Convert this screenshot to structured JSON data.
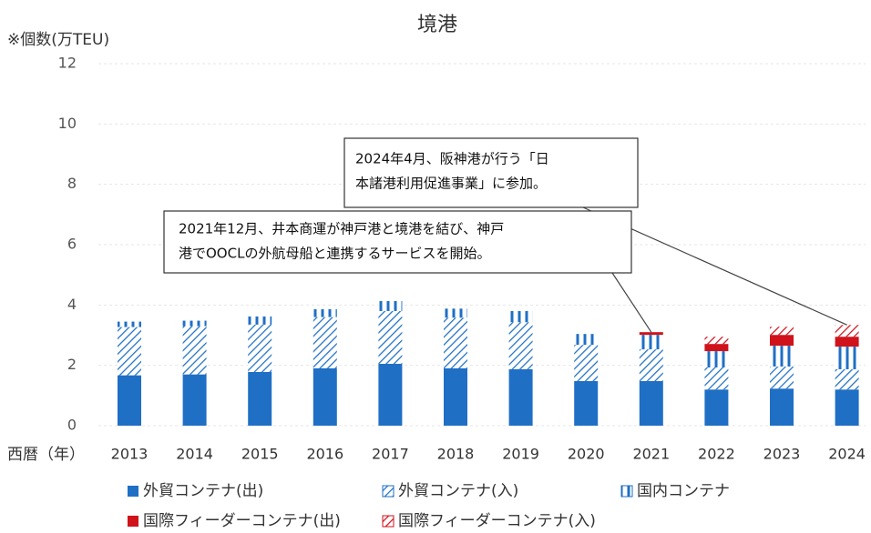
{
  "chart_data": {
    "type": "stacked_bar",
    "title": "境港",
    "y_label": "※個数(万TEU)",
    "x_label": "西暦（年）",
    "categories": [
      "2013",
      "2014",
      "2015",
      "2016",
      "2017",
      "2018",
      "2019",
      "2020",
      "2021",
      "2022",
      "2023",
      "2024"
    ],
    "series": [
      {
        "name": "外貿コンテナ(出)",
        "color": "#1f6fc5",
        "hatch": "solid",
        "values": [
          1.67,
          1.7,
          1.78,
          1.9,
          2.05,
          1.9,
          1.87,
          1.48,
          1.48,
          1.2,
          1.23,
          1.2
        ]
      },
      {
        "name": "外貿コンテナ(入)",
        "color": "#1f6fc5",
        "hatch": "diagonal",
        "values": [
          1.6,
          1.6,
          1.57,
          1.7,
          1.75,
          1.68,
          1.56,
          1.2,
          1.05,
          0.73,
          0.73,
          0.67
        ]
      },
      {
        "name": "国内コンテナ",
        "color": "#1f6fc5",
        "hatch": "vertical",
        "values": [
          0.18,
          0.18,
          0.27,
          0.26,
          0.33,
          0.3,
          0.37,
          0.36,
          0.48,
          0.54,
          0.69,
          0.75
        ]
      },
      {
        "name": "国際フィーダーコンテナ(出)",
        "color": "#d0121b",
        "hatch": "solid",
        "values": [
          0,
          0,
          0,
          0,
          0,
          0,
          0,
          0,
          0.09,
          0.24,
          0.36,
          0.33
        ]
      },
      {
        "name": "国際フィーダーコンテナ(入)",
        "color": "#d0121b",
        "hatch": "diagonal",
        "values": [
          0,
          0,
          0,
          0,
          0,
          0,
          0,
          0,
          0,
          0.24,
          0.27,
          0.39
        ]
      }
    ],
    "ylim": [
      0,
      12
    ],
    "yticks": [
      0,
      2,
      4,
      6,
      8,
      10,
      12
    ],
    "grid": true,
    "annotations": [
      {
        "lines": [
          "2024年4月、阪神港が行う「日",
          "本諸港利用促進事業」に参加。"
        ],
        "target": "2024"
      },
      {
        "lines": [
          "2021年12月、井本商運が神戸港と境港を結び、神戸",
          "港でOOCLの外航母船と連携するサービスを開始。"
        ],
        "target": "2021"
      }
    ]
  }
}
